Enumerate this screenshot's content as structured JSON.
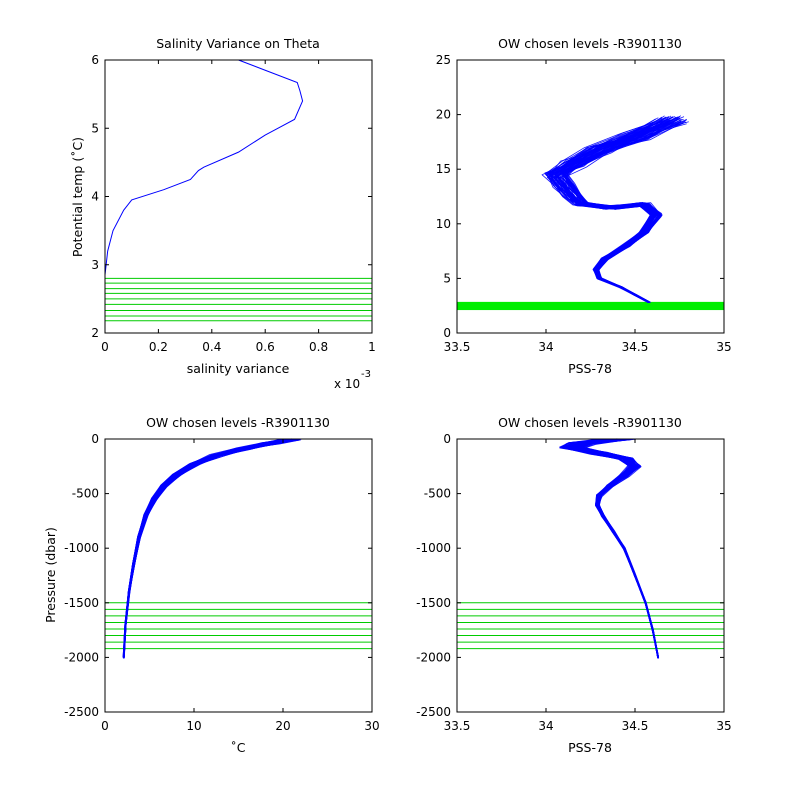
{
  "chart_data": [
    {
      "id": "p1",
      "type": "line",
      "title": "Salinity Variance on Theta",
      "xlabel": "salinity variance",
      "ylabel": "Potential temp (˚C)",
      "xlim": [
        0,
        1
      ],
      "ylim": [
        2,
        6
      ],
      "xticks": [
        0,
        0.2,
        0.4,
        0.6,
        0.8,
        1
      ],
      "yticks": [
        2,
        3,
        4,
        5,
        6
      ],
      "xtick_labels": [
        "0",
        "0.2",
        "0.4",
        "0.6",
        "0.8",
        "1"
      ],
      "ytick_labels": [
        "2",
        "3",
        "4",
        "5",
        "6"
      ],
      "x_multiplier_base": "x 10",
      "x_multiplier_exp": "-3",
      "grid": false,
      "series": [
        {
          "color": "#0000ff",
          "x": [
            0.0,
            0.01,
            0.03,
            0.07,
            0.1,
            0.22,
            0.32,
            0.35,
            0.37,
            0.5,
            0.6,
            0.71,
            0.74,
            0.73,
            0.72,
            0.6,
            0.5
          ],
          "y": [
            2.85,
            3.2,
            3.5,
            3.8,
            3.95,
            4.1,
            4.25,
            4.38,
            4.43,
            4.65,
            4.9,
            5.13,
            5.4,
            5.55,
            5.67,
            5.85,
            6.0
          ]
        }
      ],
      "hlines": {
        "color": "#00cc00",
        "y": [
          2.18,
          2.25,
          2.33,
          2.42,
          2.5,
          2.58,
          2.65,
          2.73,
          2.8
        ]
      }
    },
    {
      "id": "p2",
      "type": "line",
      "title": "OW chosen levels -R3901130",
      "xlabel": "PSS-78",
      "ylabel": "",
      "xlim": [
        33.5,
        35
      ],
      "ylim": [
        0,
        25
      ],
      "xticks": [
        33.5,
        34,
        34.5,
        35
      ],
      "yticks": [
        0,
        5,
        10,
        15,
        20,
        25
      ],
      "xtick_labels": [
        "33.5",
        "34",
        "34.5",
        "35"
      ],
      "ytick_labels": [
        "0",
        "5",
        "10",
        "15",
        "20",
        "25"
      ],
      "grid": false,
      "series": [
        {
          "color": "#0000ff",
          "x": [
            34.58,
            34.5,
            34.42,
            34.3,
            34.28,
            34.33,
            34.45,
            34.55,
            34.62,
            34.55,
            34.35,
            34.2,
            34.15,
            34.1,
            34.05,
            34.15,
            34.3,
            34.5,
            34.7
          ],
          "y": [
            2.8,
            3.5,
            4.2,
            5.0,
            5.8,
            6.8,
            8.0,
            9.2,
            10.8,
            11.8,
            11.5,
            11.8,
            12.5,
            13.5,
            14.5,
            15.5,
            16.8,
            18.0,
            19.5
          ]
        }
      ],
      "hlines": {
        "color": "#00ee00",
        "y": [
          2.1,
          2.25,
          2.4,
          2.55,
          2.7,
          2.85
        ]
      }
    },
    {
      "id": "p3",
      "type": "line",
      "title": "OW chosen levels -R3901130",
      "xlabel": "˚C",
      "ylabel": "Pressure (dbar)",
      "xlim": [
        0,
        30
      ],
      "ylim": [
        -2500,
        0
      ],
      "xticks": [
        0,
        10,
        20,
        30
      ],
      "yticks": [
        -2500,
        -2000,
        -1500,
        -1000,
        -500,
        0
      ],
      "xtick_labels": [
        "0",
        "10",
        "20",
        "30"
      ],
      "ytick_labels": [
        "-2500",
        "-2000",
        "-1500",
        "-1000",
        "-500",
        "0"
      ],
      "grid": false,
      "series": [
        {
          "color": "#0000ff",
          "x": [
            2.1,
            2.3,
            2.7,
            3.2,
            3.8,
            4.6,
            5.5,
            6.6,
            8.0,
            10.0,
            12.5,
            15.5,
            18.5,
            21.0
          ],
          "y": [
            -2000,
            -1700,
            -1400,
            -1150,
            -900,
            -700,
            -550,
            -430,
            -330,
            -230,
            -150,
            -90,
            -40,
            0
          ]
        }
      ],
      "hlines": {
        "color": "#00cc00",
        "y": [
          -1500,
          -1560,
          -1620,
          -1680,
          -1740,
          -1800,
          -1860,
          -1920
        ]
      }
    },
    {
      "id": "p4",
      "type": "line",
      "title": "OW chosen levels -R3901130",
      "xlabel": "PSS-78",
      "ylabel": "",
      "xlim": [
        33.5,
        35
      ],
      "ylim": [
        -2500,
        0
      ],
      "xticks": [
        33.5,
        34,
        34.5,
        35
      ],
      "yticks": [
        -2500,
        -2000,
        -1500,
        -1000,
        -500,
        0
      ],
      "xtick_labels": [
        "33.5",
        "34",
        "34.5",
        "35"
      ],
      "ytick_labels": [
        "-2500",
        "-2000",
        "-1500",
        "-1000",
        "-500",
        "0"
      ],
      "grid": false,
      "series": [
        {
          "color": "#0000ff",
          "x": [
            34.63,
            34.6,
            34.56,
            34.5,
            34.44,
            34.38,
            34.32,
            34.29,
            34.3,
            34.36,
            34.44,
            34.5,
            34.45,
            34.3,
            34.15,
            34.2,
            34.4
          ],
          "y": [
            -2000,
            -1750,
            -1500,
            -1250,
            -1000,
            -850,
            -700,
            -600,
            -520,
            -430,
            -340,
            -250,
            -180,
            -130,
            -80,
            -40,
            0
          ]
        }
      ],
      "hlines": {
        "color": "#00cc00",
        "y": [
          -1500,
          -1560,
          -1620,
          -1680,
          -1740,
          -1800,
          -1860,
          -1920
        ]
      }
    }
  ]
}
